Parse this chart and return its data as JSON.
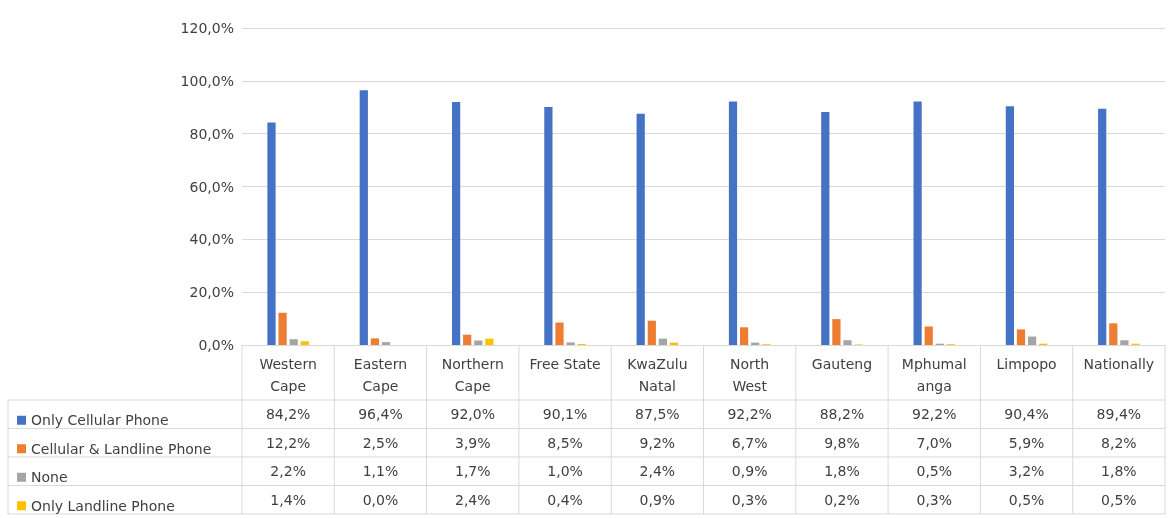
{
  "chart_data": {
    "type": "bar",
    "categories": [
      "Western\nCape",
      "Eastern\nCape",
      "Northern\nCape",
      "Free State",
      "KwaZulu\nNatal",
      "North\nWest",
      "Gauteng",
      "Mphumal\nanga",
      "Limpopo",
      "Nationally"
    ],
    "series": [
      {
        "name": "Only Cellular Phone",
        "color": "#4472c4",
        "values": [
          84.2,
          96.4,
          92.0,
          90.1,
          87.5,
          92.2,
          88.2,
          92.2,
          90.4,
          89.4
        ],
        "value_labels": [
          "84,2%",
          "96,4%",
          "92,0%",
          "90,1%",
          "87,5%",
          "92,2%",
          "88,2%",
          "92,2%",
          "90,4%",
          "89,4%"
        ]
      },
      {
        "name": "Cellular & Landline Phone",
        "color": "#ed7d31",
        "values": [
          12.2,
          2.5,
          3.9,
          8.5,
          9.2,
          6.7,
          9.8,
          7.0,
          5.9,
          8.2
        ],
        "value_labels": [
          "12,2%",
          "2,5%",
          "3,9%",
          "8,5%",
          "9,2%",
          "6,7%",
          "9,8%",
          "7,0%",
          "5,9%",
          "8,2%"
        ]
      },
      {
        "name": "None",
        "color": "#a5a5a5",
        "values": [
          2.2,
          1.1,
          1.7,
          1.0,
          2.4,
          0.9,
          1.8,
          0.5,
          3.2,
          1.8
        ],
        "value_labels": [
          "2,2%",
          "1,1%",
          "1,7%",
          "1,0%",
          "2,4%",
          "0,9%",
          "1,8%",
          "0,5%",
          "3,2%",
          "1,8%"
        ]
      },
      {
        "name": "Only Landline Phone",
        "color": "#ffc000",
        "values": [
          1.4,
          0.0,
          2.4,
          0.4,
          0.9,
          0.3,
          0.2,
          0.3,
          0.5,
          0.5
        ],
        "value_labels": [
          "1,4%",
          "0,0%",
          "2,4%",
          "0,4%",
          "0,9%",
          "0,3%",
          "0,2%",
          "0,3%",
          "0,5%",
          "0,5%"
        ]
      }
    ],
    "ylim": [
      0,
      120
    ],
    "yticks": [
      {
        "value": 0,
        "label": "0,0%"
      },
      {
        "value": 20,
        "label": "20,0%"
      },
      {
        "value": 40,
        "label": "40,0%"
      },
      {
        "value": 60,
        "label": "60,0%"
      },
      {
        "value": 80,
        "label": "80,0%"
      },
      {
        "value": 100,
        "label": "100,0%"
      },
      {
        "value": 120,
        "label": "120,0%"
      }
    ],
    "grid": "y",
    "legend": "bottom left"
  }
}
